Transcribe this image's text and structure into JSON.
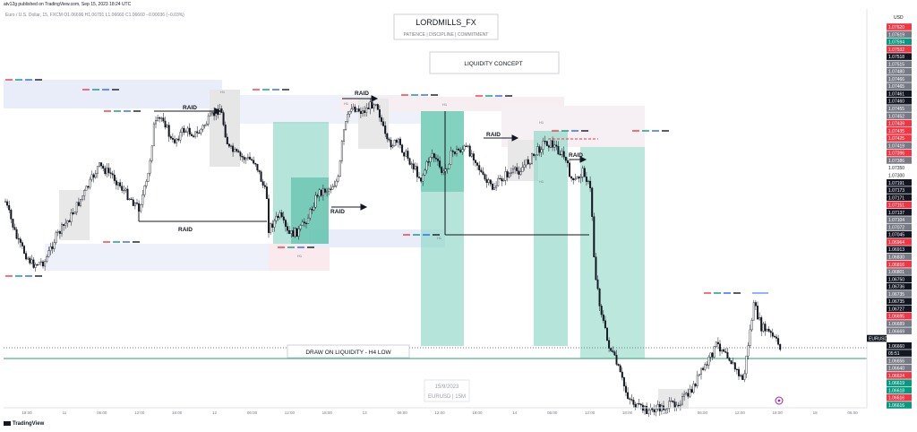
{
  "header": {
    "publish_line": "atv12g published on TradingView.com, Sep 15, 2023 18:24 UTC",
    "symbol_line": "Euro / U.S. Dollar, 15, FXCM  O1.06696  H1.06791  L1.06660  C1.06660  −0.00036 (−0.03%)"
  },
  "brand": {
    "logo_text": "TradingView"
  },
  "boxes": {
    "title_main": "LORDMILLS_FX",
    "title_sub": "PATIENCE | DISCIPLINE | COMMITMENT",
    "concept": "LIQUIDITY CONCEPT",
    "draw_on_liquidity": "DRAW ON LIQUIDITY - H4 LOW",
    "date_watermark": "15/9/2023",
    "symbol_watermark": "EURUSD | 15M"
  },
  "annotations": {
    "raid_labels": [
      "RAID",
      "RAID",
      "RAID",
      "RAID",
      "RAID",
      "RAID"
    ],
    "tf_labels": [
      "H1",
      "H1",
      "H1",
      "H1",
      "H1",
      "H1",
      "H1"
    ]
  },
  "colors": {
    "zone_green": "#7fcfbe",
    "zone_green_dark": "#2ea88f",
    "zone_blue": "#e8ecf9",
    "zone_red": "#fbe9ec",
    "zone_gray": "#e6e6e6",
    "dol_line": "#2e9c73",
    "price_label_bg": "#131722",
    "price_label_alt": "#787b86",
    "price_label_red": "#f23645",
    "price_label_green": "#089981"
  },
  "chart_data": {
    "type": "candlestick",
    "symbol": "EURUSD",
    "timeframe": "15",
    "axis_currency": "USD",
    "current_price": "1.06660",
    "current_countdown": "05:51",
    "x_tick_labels": [
      "18:00",
      "11",
      "06:00",
      "12:00",
      "18:00",
      "12",
      "06:00",
      "12:00",
      "18:00",
      "13",
      "06:00",
      "12:00",
      "18:00",
      "14",
      "06:00",
      "12:00",
      "18:00",
      "15",
      "06:00",
      "12:00",
      "18:00",
      "18",
      "06:00"
    ],
    "y_price_labels": [
      {
        "text": "1.07620",
        "style": "red"
      },
      {
        "text": "1.07619",
        "style": "gray"
      },
      {
        "text": "1.07594",
        "style": "green"
      },
      {
        "text": "1.07532",
        "style": "red"
      },
      {
        "text": "1.07518",
        "style": "dark"
      },
      {
        "text": "1.07515",
        "style": "gray"
      },
      {
        "text": "1.07480",
        "style": "gray"
      },
      {
        "text": "1.07466",
        "style": "gray"
      },
      {
        "text": "1.07465",
        "style": "gray"
      },
      {
        "text": "1.07461",
        "style": "dark"
      },
      {
        "text": "1.07460",
        "style": "dark"
      },
      {
        "text": "1.07455",
        "style": "gray"
      },
      {
        "text": "1.07452",
        "style": "gray"
      },
      {
        "text": "1.07439",
        "style": "red"
      },
      {
        "text": "1.07435",
        "style": "red"
      },
      {
        "text": "1.07425",
        "style": "red"
      },
      {
        "text": "1.07419",
        "style": "gray"
      },
      {
        "text": "1.07396",
        "style": "red"
      },
      {
        "text": "1.07386",
        "style": "gray"
      },
      {
        "text": "1.07350",
        "style": "plain"
      },
      {
        "text": "1.07300",
        "style": "plain"
      },
      {
        "text": "1.07191",
        "style": "dark"
      },
      {
        "text": "1.07173",
        "style": "dark"
      },
      {
        "text": "1.07171",
        "style": "dark"
      },
      {
        "text": "1.07151",
        "style": "red"
      },
      {
        "text": "1.07137",
        "style": "dark"
      },
      {
        "text": "1.07104",
        "style": "gray"
      },
      {
        "text": "1.07072",
        "style": "gray"
      },
      {
        "text": "1.07045",
        "style": "dark"
      },
      {
        "text": "1.06964",
        "style": "red"
      },
      {
        "text": "1.06913",
        "style": "dark"
      },
      {
        "text": "1.06830",
        "style": "gray"
      },
      {
        "text": "1.06816",
        "style": "red"
      },
      {
        "text": "1.06801",
        "style": "gray"
      },
      {
        "text": "1.06750",
        "style": "dark"
      },
      {
        "text": "1.06736",
        "style": "dark"
      },
      {
        "text": "1.06735",
        "style": "gray"
      },
      {
        "text": "1.06735",
        "style": "dark"
      },
      {
        "text": "1.06727",
        "style": "dark"
      },
      {
        "text": "1.06695",
        "style": "red"
      },
      {
        "text": "1.06689",
        "style": "gray"
      },
      {
        "text": "1.06669",
        "style": "gray"
      },
      {
        "text": "EURUSD",
        "style": "dark"
      },
      {
        "text": "1.06660",
        "style": "dark"
      },
      {
        "text": "05:51",
        "style": "dark"
      },
      {
        "text": "1.06656",
        "style": "gray"
      },
      {
        "text": "1.06640",
        "style": "gray"
      },
      {
        "text": "1.06624",
        "style": "red"
      },
      {
        "text": "1.06619",
        "style": "green"
      },
      {
        "text": "1.06618",
        "style": "green"
      },
      {
        "text": "1.06616",
        "style": "red"
      },
      {
        "text": "1.06616",
        "style": "green"
      }
    ]
  }
}
